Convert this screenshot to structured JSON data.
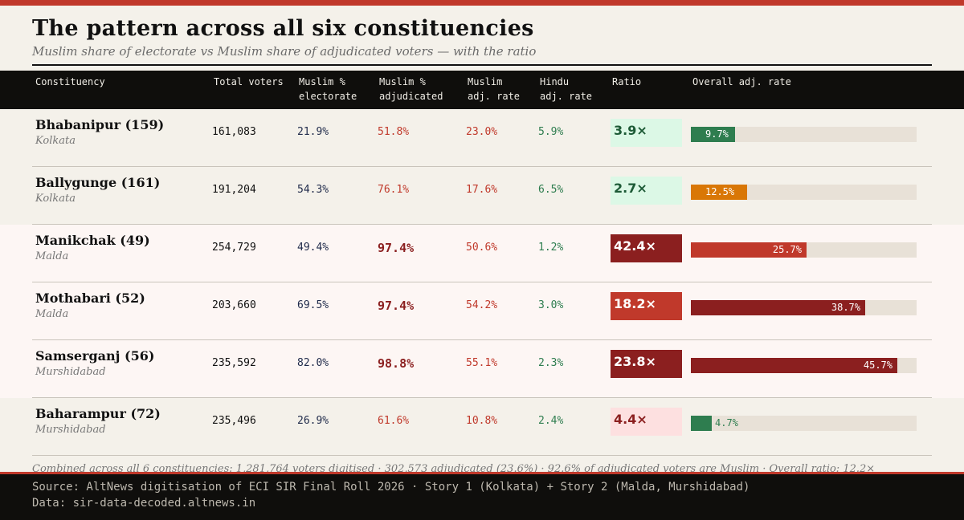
{
  "header": {
    "title": "The pattern across all six constituencies",
    "subtitle": "Muslim share of electorate vs Muslim share of adjudicated voters — with the ratio"
  },
  "table": {
    "columns": [
      [
        "Constituency"
      ],
      [
        "Total voters"
      ],
      [
        "Muslim %",
        "electorate"
      ],
      [
        "Muslim %",
        "adjudicated"
      ],
      [
        "Muslim",
        "adj. rate"
      ],
      [
        "Hindu",
        "adj. rate"
      ],
      [
        "Ratio"
      ],
      [
        "Overall adj. rate"
      ]
    ]
  },
  "chart_data": {
    "type": "table",
    "title": "The pattern across all six constituencies",
    "subtitle": "Muslim share of electorate vs Muslim share of adjudicated voters — with the ratio",
    "bar_axis": {
      "column": "Overall adj. rate",
      "xlim": [
        0,
        50
      ],
      "unit": "%"
    },
    "rows": [
      {
        "name": "Bhabanipur (159)",
        "district": "Kolkata",
        "total": "161,083",
        "muslim_electorate": "21.9%",
        "muslim_adjudicated": "51.8%",
        "muslim_adj_rate": "23.0%",
        "hindu_adj_rate": "5.9%",
        "ratio": "3.9×",
        "overall_rate": 9.7,
        "overall_label": "9.7%",
        "bar_color": "#2e7d4f",
        "ratio_style": "green",
        "strong": false,
        "highlight": false
      },
      {
        "name": "Ballygunge (161)",
        "district": "Kolkata",
        "total": "191,204",
        "muslim_electorate": "54.3%",
        "muslim_adjudicated": "76.1%",
        "muslim_adj_rate": "17.6%",
        "hindu_adj_rate": "6.5%",
        "ratio": "2.7×",
        "overall_rate": 12.5,
        "overall_label": "12.5%",
        "bar_color": "#d97706",
        "ratio_style": "green",
        "strong": false,
        "highlight": false
      },
      {
        "name": "Manikchak (49)",
        "district": "Malda",
        "total": "254,729",
        "muslim_electorate": "49.4%",
        "muslim_adjudicated": "97.4%",
        "muslim_adj_rate": "50.6%",
        "hindu_adj_rate": "1.2%",
        "ratio": "42.4×",
        "overall_rate": 25.7,
        "overall_label": "25.7%",
        "bar_color": "#c0392b",
        "ratio_style": "dark",
        "strong": true,
        "highlight": true
      },
      {
        "name": "Mothabari (52)",
        "district": "Malda",
        "total": "203,660",
        "muslim_electorate": "69.5%",
        "muslim_adjudicated": "97.4%",
        "muslim_adj_rate": "54.2%",
        "hindu_adj_rate": "3.0%",
        "ratio": "18.2×",
        "overall_rate": 38.7,
        "overall_label": "38.7%",
        "bar_color": "#8b1f1f",
        "ratio_style": "red",
        "strong": true,
        "highlight": true
      },
      {
        "name": "Samserganj (56)",
        "district": "Murshidabad",
        "total": "235,592",
        "muslim_electorate": "82.0%",
        "muslim_adjudicated": "98.8%",
        "muslim_adj_rate": "55.1%",
        "hindu_adj_rate": "2.3%",
        "ratio": "23.8×",
        "overall_rate": 45.7,
        "overall_label": "45.7%",
        "bar_color": "#8b1f1f",
        "ratio_style": "dark",
        "strong": true,
        "highlight": true
      },
      {
        "name": "Baharampur (72)",
        "district": "Murshidabad",
        "total": "235,496",
        "muslim_electorate": "26.9%",
        "muslim_adjudicated": "61.6%",
        "muslim_adj_rate": "10.8%",
        "hindu_adj_rate": "2.4%",
        "ratio": "4.4×",
        "overall_rate": 4.7,
        "overall_label": "4.7%",
        "bar_color": "#2e7d4f",
        "ratio_style": "pink",
        "strong": false,
        "highlight": false
      }
    ]
  },
  "colors": {
    "accent_red": "#c0392b",
    "dark_red": "#8b1f1f",
    "green": "#2e7d4f",
    "orange": "#d97706",
    "ratio_green_bg": "#dcf8e6",
    "ratio_green_text": "#1d5a36",
    "ratio_pink_bg": "#fde0e0",
    "ratio_pink_text": "#8b1f1f"
  },
  "footnote": "Combined across all 6 constituencies: 1,281,764 voters digitised · 302,573 adjudicated (23.6%) · 92.6% of adjudicated voters are Muslim · Overall ratio: 12.2×",
  "footer": {
    "source": "Source: AltNews digitisation of ECI SIR Final Roll 2026 · Story 1 (Kolkata) + Story 2 (Malda, Murshidabad)",
    "data": "Data: sir-data-decoded.altnews.in"
  }
}
